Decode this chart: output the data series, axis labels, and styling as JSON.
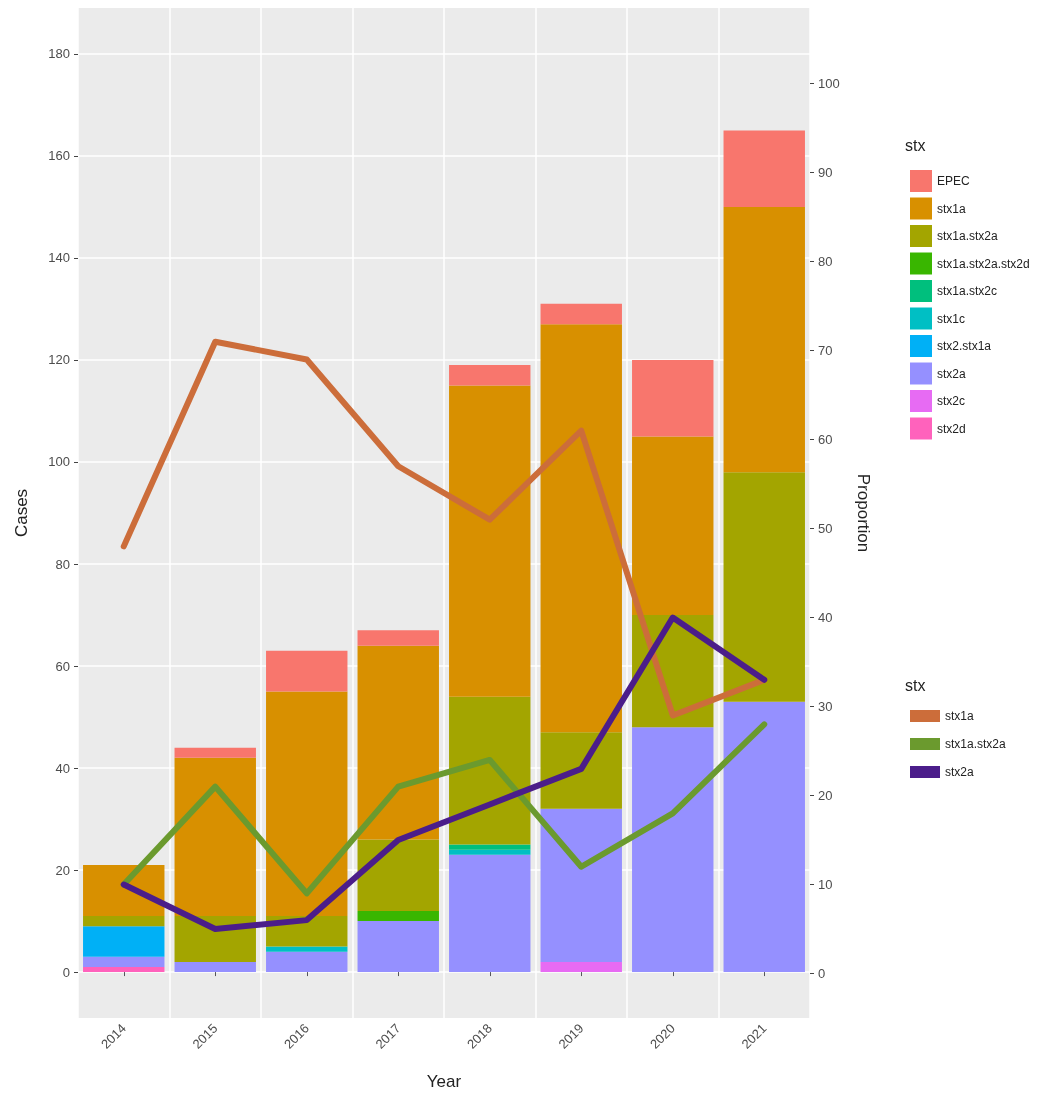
{
  "chart_data": {
    "type": "bar",
    "stacked": true,
    "xlabel": "Year",
    "ylabel": "Cases",
    "y2label": "Proportion",
    "legend_title": "stx",
    "legend": "right",
    "grid": true,
    "marker": "none",
    "categories": [
      "2014",
      "2015",
      "2016",
      "2017",
      "2018",
      "2019",
      "2020",
      "2021"
    ],
    "ylim": [
      -9,
      189
    ],
    "yticks": [
      0,
      20,
      40,
      60,
      80,
      100,
      120,
      140,
      160,
      180
    ],
    "y2lim": [
      -5,
      108.5
    ],
    "y2ticks": [
      0,
      10,
      20,
      30,
      40,
      50,
      60,
      70,
      80,
      90,
      100
    ],
    "series": [
      {
        "name": "stx2d",
        "color": "#ff62bc",
        "values": [
          1,
          null,
          null,
          null,
          null,
          null,
          null,
          null
        ]
      },
      {
        "name": "stx2c",
        "color": "#e76bf3",
        "values": [
          null,
          null,
          null,
          null,
          null,
          2,
          null,
          null
        ]
      },
      {
        "name": "stx2a",
        "color": "#9590ff",
        "values": [
          2,
          2,
          4,
          10,
          23,
          30,
          48,
          53
        ]
      },
      {
        "name": "stx2.stx1a",
        "color": "#00b0f6",
        "values": [
          6,
          null,
          null,
          null,
          null,
          null,
          null,
          null
        ]
      },
      {
        "name": "stx1c",
        "color": "#00bfc4",
        "values": [
          null,
          null,
          1,
          null,
          1,
          null,
          null,
          null
        ]
      },
      {
        "name": "stx1a.stx2c",
        "color": "#00bf7d",
        "values": [
          null,
          null,
          null,
          null,
          1,
          null,
          null,
          null
        ]
      },
      {
        "name": "stx1a.stx2a.stx2d",
        "color": "#39b600",
        "values": [
          null,
          null,
          null,
          2,
          null,
          null,
          null,
          null
        ]
      },
      {
        "name": "stx1a.stx2a",
        "color": "#a3a500",
        "values": [
          2,
          9,
          6,
          14,
          29,
          15,
          22,
          45
        ]
      },
      {
        "name": "stx1a",
        "color": "#d89000",
        "values": [
          10,
          31,
          44,
          38,
          61,
          80,
          35,
          52
        ]
      },
      {
        "name": "EPEC",
        "color": "#f8766d",
        "values": [
          null,
          2,
          8,
          3,
          4,
          4,
          15,
          15
        ]
      },
      {
        "name": "stx1a",
        "type": "line",
        "axis": "y2",
        "color": "#cc6d3a",
        "values": [
          48,
          71,
          69,
          57,
          51,
          61,
          29,
          33
        ]
      },
      {
        "name": "stx1a.stx2a",
        "type": "line",
        "axis": "y2",
        "color": "#6b9a2e",
        "values": [
          10,
          21,
          9,
          21,
          24,
          12,
          18,
          28
        ]
      },
      {
        "name": "stx2a",
        "type": "line",
        "axis": "y2",
        "color": "#4b1d8a",
        "values": [
          10,
          5,
          6,
          15,
          19,
          23,
          40,
          33
        ]
      }
    ]
  }
}
